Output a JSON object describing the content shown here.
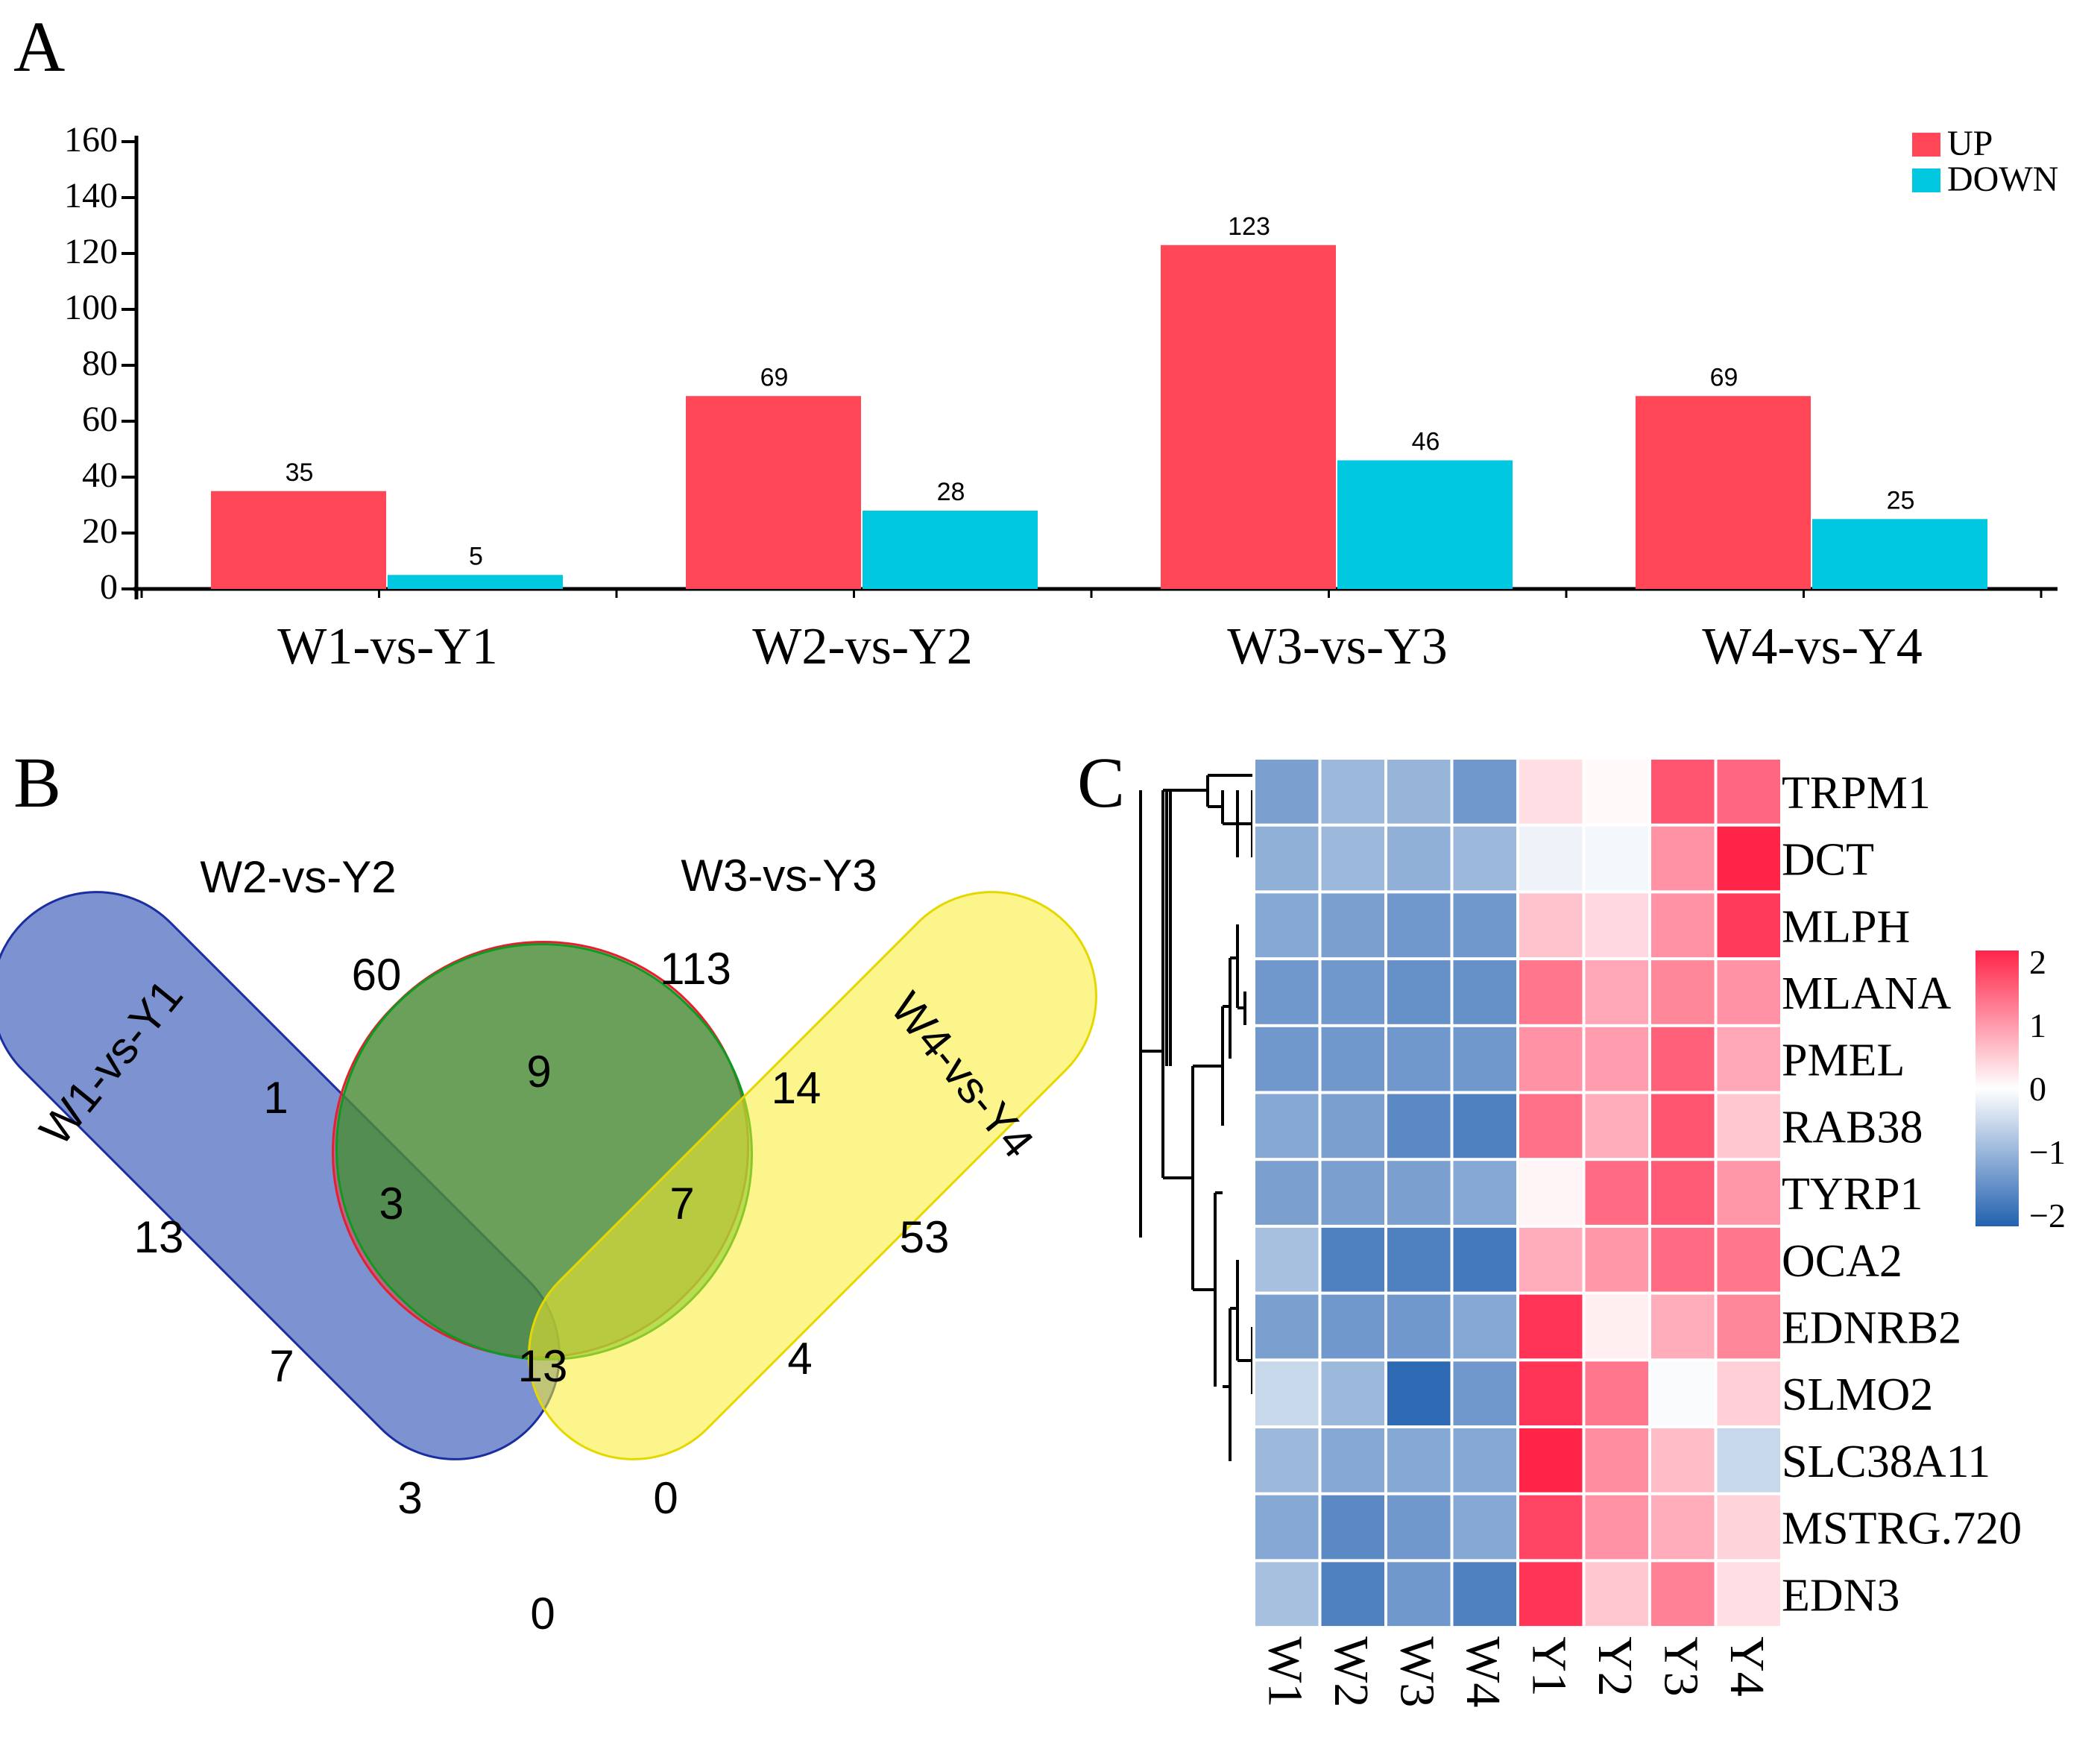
{
  "panels": {
    "a": "A",
    "b": "B",
    "c": "C"
  },
  "colors": {
    "up": "#ff4757",
    "down": "#00c8e0"
  },
  "chart_data": [
    {
      "type": "bar",
      "panel": "A",
      "categories": [
        "W1-vs-Y1",
        "W2-vs-Y2",
        "W3-vs-Y3",
        "W4-vs-Y4"
      ],
      "series": [
        {
          "name": "UP",
          "values": [
            35,
            69,
            123,
            69
          ]
        },
        {
          "name": "DOWN",
          "values": [
            5,
            28,
            46,
            25
          ]
        }
      ],
      "ylim": [
        0,
        160
      ],
      "yticks": [
        "0",
        "20",
        "40",
        "60",
        "80",
        "100",
        "120",
        "140",
        "160"
      ],
      "legend_position": "top-right"
    },
    {
      "type": "venn",
      "panel": "B",
      "sets": [
        "W1-vs-Y1",
        "W2-vs-Y2",
        "W3-vs-Y3",
        "W4-vs-Y4"
      ],
      "region_values": [
        "13",
        "60",
        "113",
        "53",
        "1",
        "9",
        "14",
        "3",
        "7",
        "7",
        "13",
        "4",
        "3",
        "0",
        "0"
      ]
    },
    {
      "type": "heatmap",
      "panel": "C",
      "columns": [
        "W1",
        "W2",
        "W3",
        "W4",
        "Y1",
        "Y2",
        "Y3",
        "Y4"
      ],
      "rows": [
        "TRPM1",
        "DCT",
        "MLPH",
        "MLANA",
        "PMEL",
        "RAB38",
        "TYRP1",
        "OCA2",
        "EDNRB2",
        "SLMO2",
        "SLC38A11",
        "MSTRG.720",
        "EDN3"
      ],
      "values": [
        [
          -1.2,
          -0.9,
          -0.95,
          -1.3,
          0.3,
          0.05,
          1.55,
          1.4
        ],
        [
          -1.0,
          -0.9,
          -1.0,
          -0.9,
          -0.15,
          -0.1,
          1.0,
          2.1
        ],
        [
          -1.1,
          -1.2,
          -1.3,
          -1.3,
          0.55,
          0.35,
          1.0,
          1.8
        ],
        [
          -1.3,
          -1.3,
          -1.4,
          -1.4,
          1.25,
          0.8,
          1.1,
          1.0
        ],
        [
          -1.3,
          -1.3,
          -1.3,
          -1.3,
          1.0,
          0.9,
          1.45,
          0.8
        ],
        [
          -1.1,
          -1.2,
          -1.5,
          -1.6,
          1.3,
          0.75,
          1.55,
          0.5
        ],
        [
          -1.2,
          -1.2,
          -1.2,
          -1.1,
          0.1,
          1.35,
          1.5,
          0.95
        ],
        [
          -0.8,
          -1.6,
          -1.6,
          -1.7,
          0.75,
          0.95,
          1.35,
          1.25
        ],
        [
          -1.2,
          -1.3,
          -1.3,
          -1.1,
          1.85,
          0.15,
          0.75,
          1.1
        ],
        [
          -0.5,
          -0.9,
          -1.9,
          -1.3,
          1.85,
          1.25,
          -0.05,
          0.45
        ],
        [
          -0.9,
          -1.1,
          -1.1,
          -1.1,
          2.0,
          1.05,
          0.6,
          -0.5
        ],
        [
          -1.1,
          -1.5,
          -1.3,
          -1.1,
          1.7,
          1.0,
          0.75,
          0.4
        ],
        [
          -0.8,
          -1.6,
          -1.3,
          -1.6,
          1.85,
          0.5,
          1.15,
          0.3
        ]
      ],
      "color_scale": {
        "min": -2,
        "max": 2,
        "low": "#2361b0",
        "mid": "#ffffff",
        "high": "#ff2448"
      },
      "scale_ticks": [
        "2",
        "1",
        "0",
        "−1",
        "−2"
      ]
    }
  ]
}
